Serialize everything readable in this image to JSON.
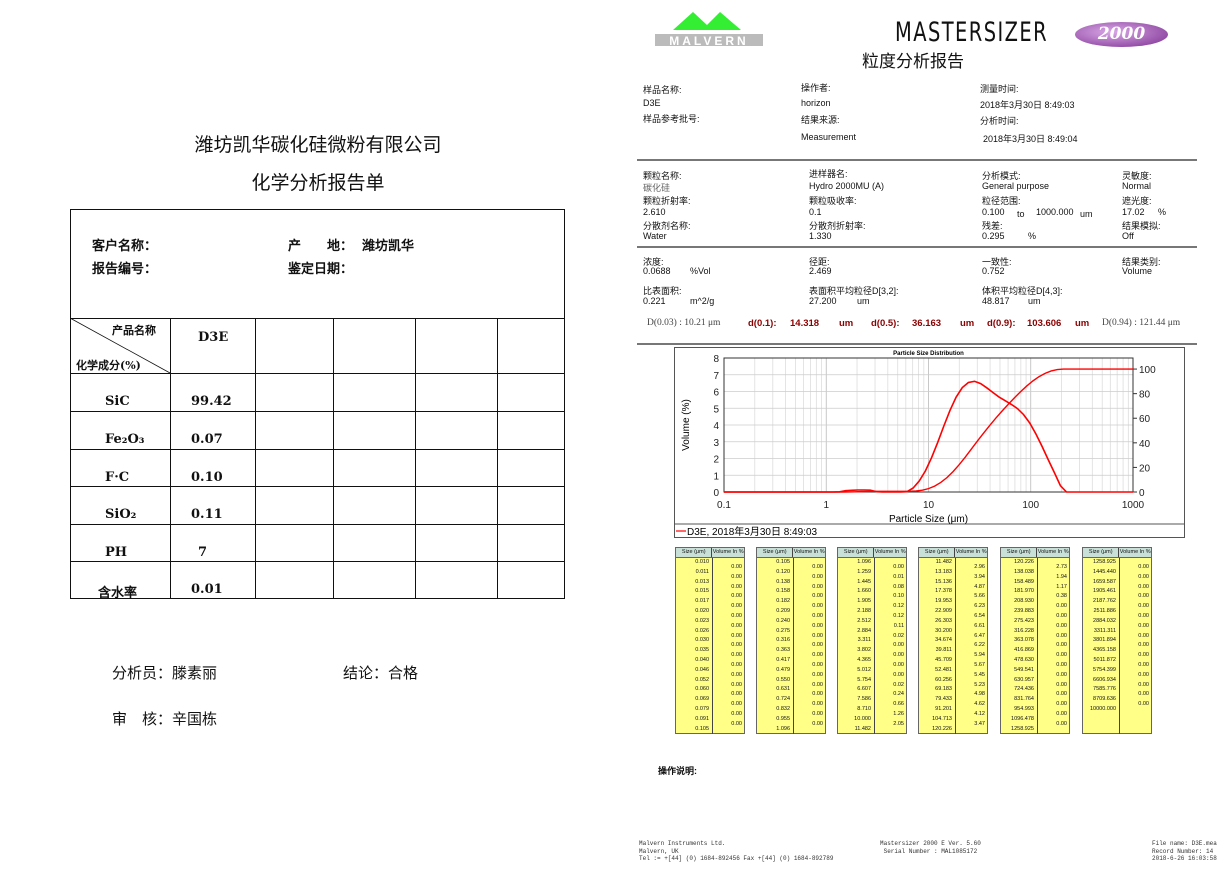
{
  "left": {
    "company": "潍坊凯华碳化硅微粉有限公司",
    "title": "化学分析报告单",
    "customer_label": "客户名称：",
    "origin_label": "产　　地：",
    "origin_value": "潍坊凯华",
    "report_no_label": "报告编号：",
    "date_label": "鉴定日期：",
    "header_product": "产品名称",
    "header_component": "化学成分(%)",
    "product": "D3E",
    "rows": [
      {
        "name": "SiC",
        "value": "99.42"
      },
      {
        "name": "Fe₂O₃",
        "value": "0.07"
      },
      {
        "name": "F·C",
        "value": "0.10"
      },
      {
        "name": "SiO₂",
        "value": "0.11"
      },
      {
        "name": "PH",
        "value": "7"
      },
      {
        "name": "含水率",
        "value": "0.01"
      }
    ],
    "analyst": "分析员：滕素丽",
    "conclusion": "结论：合格",
    "reviewer": "审　核：辛国栋"
  },
  "right": {
    "logo_text": "MALVERN",
    "brand": "MASTERSIZER",
    "brand_badge": "2000",
    "title": "粒度分析报告",
    "info": {
      "sample_name_label": "样品名称:",
      "sample_name": "D3E",
      "sample_ref_label": "样品参考批号:",
      "operator_label": "操作者:",
      "operator": "horizon",
      "source_label": "结果来源:",
      "source": "Measurement",
      "measure_time_label": "测量时间:",
      "measure_time": "2018年3月30日 8:49:03",
      "analysis_time_label": "分析时间:",
      "analysis_time": "2018年3月30日 8:49:04"
    },
    "params": {
      "particle_name_label": "颗粒名称:",
      "particle_name": "碳化硅",
      "particle_ri_label": "颗粒折射率:",
      "particle_ri": "2.610",
      "dispersant_label": "分散剂名称:",
      "dispersant": "Water",
      "accessory_label": "进样器名:",
      "accessory": "Hydro 2000MU (A)",
      "absorption_label": "颗粒吸收率:",
      "absorption": "0.1",
      "dispersant_ri_label": "分散剂折射率:",
      "dispersant_ri": "1.330",
      "model_label": "分析模式:",
      "model": "General purpose",
      "range_label": "粒径范围:",
      "range_from": "0.100",
      "range_to_word": "to",
      "range_to": "1000.000",
      "range_unit": "um",
      "residual_label": "残差:",
      "residual": "0.295",
      "residual_unit": "%",
      "sensitivity_label": "灵敏度:",
      "sensitivity": "Normal",
      "obscuration_label": "遮光度:",
      "obscuration": "17.02",
      "obscuration_unit": "%",
      "emulation_label": "结果模拟:",
      "emulation": "Off"
    },
    "results": {
      "conc_label": "浓度:",
      "conc": "0.0688",
      "conc_unit": "%Vol",
      "span_label": "径距:",
      "span": "2.469",
      "uniformity_label": "一致性:",
      "uniformity": "0.752",
      "result_units_label": "结果类别:",
      "result_units": "Volume",
      "ssa_label": "比表面积:",
      "ssa": "0.221",
      "ssa_unit": "m^2/g",
      "d32_label": "表面积平均粒径D[3,2]:",
      "d32": "27.200",
      "d32_unit": "um",
      "d43_label": "体积平均粒径D[4,3]:",
      "d43": "48.817",
      "d43_unit": "um"
    },
    "percentiles": {
      "d003": "D(0.03) : 10.21 μm",
      "d01_label": "d(0.1):",
      "d01": "14.318",
      "d05_label": "d(0.5):",
      "d05": "36.163",
      "d09_label": "d(0.9):",
      "d09": "103.606",
      "unit": "um",
      "d094": "D(0.94) : 121.44 μm"
    },
    "table_headers": {
      "size": "Size (μm)",
      "volume": "Volume In %"
    },
    "tables": [
      {
        "sizes": [
          "0.010",
          "0.011",
          "0.013",
          "0.015",
          "0.017",
          "0.020",
          "0.023",
          "0.026",
          "0.030",
          "0.035",
          "0.040",
          "0.046",
          "0.052",
          "0.060",
          "0.069",
          "0.079",
          "0.091",
          "0.105"
        ],
        "volumes": [
          "0.00",
          "0.00",
          "0.00",
          "0.00",
          "0.00",
          "0.00",
          "0.00",
          "0.00",
          "0.00",
          "0.00",
          "0.00",
          "0.00",
          "0.00",
          "0.00",
          "0.00",
          "0.00",
          "0.00"
        ]
      },
      {
        "sizes": [
          "0.105",
          "0.120",
          "0.138",
          "0.158",
          "0.182",
          "0.209",
          "0.240",
          "0.275",
          "0.316",
          "0.363",
          "0.417",
          "0.479",
          "0.550",
          "0.631",
          "0.724",
          "0.832",
          "0.955",
          "1.096"
        ],
        "volumes": [
          "0.00",
          "0.00",
          "0.00",
          "0.00",
          "0.00",
          "0.00",
          "0.00",
          "0.00",
          "0.00",
          "0.00",
          "0.00",
          "0.00",
          "0.00",
          "0.00",
          "0.00",
          "0.00",
          "0.00"
        ]
      },
      {
        "sizes": [
          "1.096",
          "1.259",
          "1.445",
          "1.660",
          "1.905",
          "2.188",
          "2.512",
          "2.884",
          "3.311",
          "3.802",
          "4.365",
          "5.012",
          "5.754",
          "6.607",
          "7.586",
          "8.710",
          "10.000",
          "11.482"
        ],
        "volumes": [
          "0.00",
          "0.01",
          "0.08",
          "0.10",
          "0.12",
          "0.12",
          "0.11",
          "0.02",
          "0.00",
          "0.00",
          "0.00",
          "0.00",
          "0.02",
          "0.24",
          "0.66",
          "1.26",
          "2.05"
        ]
      },
      {
        "sizes": [
          "11.482",
          "13.183",
          "15.136",
          "17.378",
          "19.953",
          "22.909",
          "26.303",
          "30.200",
          "34.674",
          "39.811",
          "45.709",
          "52.481",
          "60.256",
          "69.183",
          "79.433",
          "91.201",
          "104.713",
          "120.226"
        ],
        "volumes": [
          "2.96",
          "3.94",
          "4.87",
          "5.66",
          "6.23",
          "6.54",
          "6.61",
          "6.47",
          "6.22",
          "5.94",
          "5.67",
          "5.45",
          "5.23",
          "4.98",
          "4.62",
          "4.12",
          "3.47"
        ]
      },
      {
        "sizes": [
          "120.226",
          "138.038",
          "158.489",
          "181.970",
          "208.930",
          "239.883",
          "275.423",
          "316.228",
          "363.078",
          "416.869",
          "478.630",
          "549.541",
          "630.957",
          "724.436",
          "831.764",
          "954.993",
          "1096.478",
          "1258.925"
        ],
        "volumes": [
          "2.73",
          "1.94",
          "1.17",
          "0.38",
          "0.00",
          "0.00",
          "0.00",
          "0.00",
          "0.00",
          "0.00",
          "0.00",
          "0.00",
          "0.00",
          "0.00",
          "0.00",
          "0.00",
          "0.00"
        ]
      },
      {
        "sizes": [
          "1258.925",
          "1445.440",
          "1659.587",
          "1905.461",
          "2187.762",
          "2511.886",
          "2884.032",
          "3311.311",
          "3801.894",
          "4365.158",
          "5011.872",
          "5754.399",
          "6606.934",
          "7585.776",
          "8709.636",
          "10000.000"
        ],
        "volumes": [
          "0.00",
          "0.00",
          "0.00",
          "0.00",
          "0.00",
          "0.00",
          "0.00",
          "0.00",
          "0.00",
          "0.00",
          "0.00",
          "0.00",
          "0.00",
          "0.00",
          "0.00"
        ]
      }
    ],
    "notes_label": "操作说明:",
    "footer": {
      "left": [
        "Malvern Instruments Ltd.",
        "Malvern, UK",
        "Tel := +[44] (0) 1684-892456 Fax +[44] (0) 1684-892789"
      ],
      "center": [
        "Mastersizer 2000 E Ver. 5.60",
        "Serial Number : MAL1085172"
      ],
      "right": [
        "File name: D3E.mea",
        "Record Number: 14",
        "2018-6-26 16:03:58"
      ]
    }
  },
  "chart_data": {
    "type": "line",
    "title": "Particle Size Distribution",
    "xlabel": "Particle Size (μm)",
    "ylabel": "Volume (%)",
    "xscale": "log",
    "xlim": [
      0.1,
      1000
    ],
    "ylim": [
      0,
      8
    ],
    "y2lim": [
      0,
      109
    ],
    "xticks": [
      "0.1",
      "1",
      "10",
      "100",
      "1000"
    ],
    "yticks": [
      "0",
      "1",
      "2",
      "3",
      "4",
      "5",
      "6",
      "7",
      "8"
    ],
    "y2ticks": [
      "0",
      "20",
      "40",
      "60",
      "80",
      "100"
    ],
    "grid": true,
    "legend": "bottom",
    "legend_label": "D3E, 2018年3月30日 8:49:03",
    "color": "#ff0000",
    "size_classes": [
      1.096,
      1.259,
      1.445,
      1.66,
      1.905,
      2.188,
      2.512,
      2.884,
      3.311,
      3.802,
      4.365,
      5.012,
      5.754,
      6.607,
      7.586,
      8.71,
      10.0,
      11.482,
      13.183,
      15.136,
      17.378,
      19.953,
      22.909,
      26.303,
      30.2,
      34.674,
      39.811,
      45.709,
      52.481,
      60.256,
      69.183,
      79.433,
      91.201,
      104.713,
      120.226,
      138.038,
      158.489,
      181.97,
      208.93,
      239.883
    ],
    "volume_in_percent": [
      0.0,
      0.01,
      0.08,
      0.1,
      0.12,
      0.12,
      0.11,
      0.02,
      0.0,
      0.0,
      0.0,
      0.0,
      0.02,
      0.24,
      0.66,
      1.26,
      2.05,
      2.96,
      3.94,
      4.87,
      5.66,
      6.23,
      6.54,
      6.61,
      6.47,
      6.22,
      5.94,
      5.67,
      5.45,
      5.23,
      4.98,
      4.62,
      4.12,
      3.47,
      2.73,
      1.94,
      1.17,
      0.38,
      0.0
    ]
  }
}
